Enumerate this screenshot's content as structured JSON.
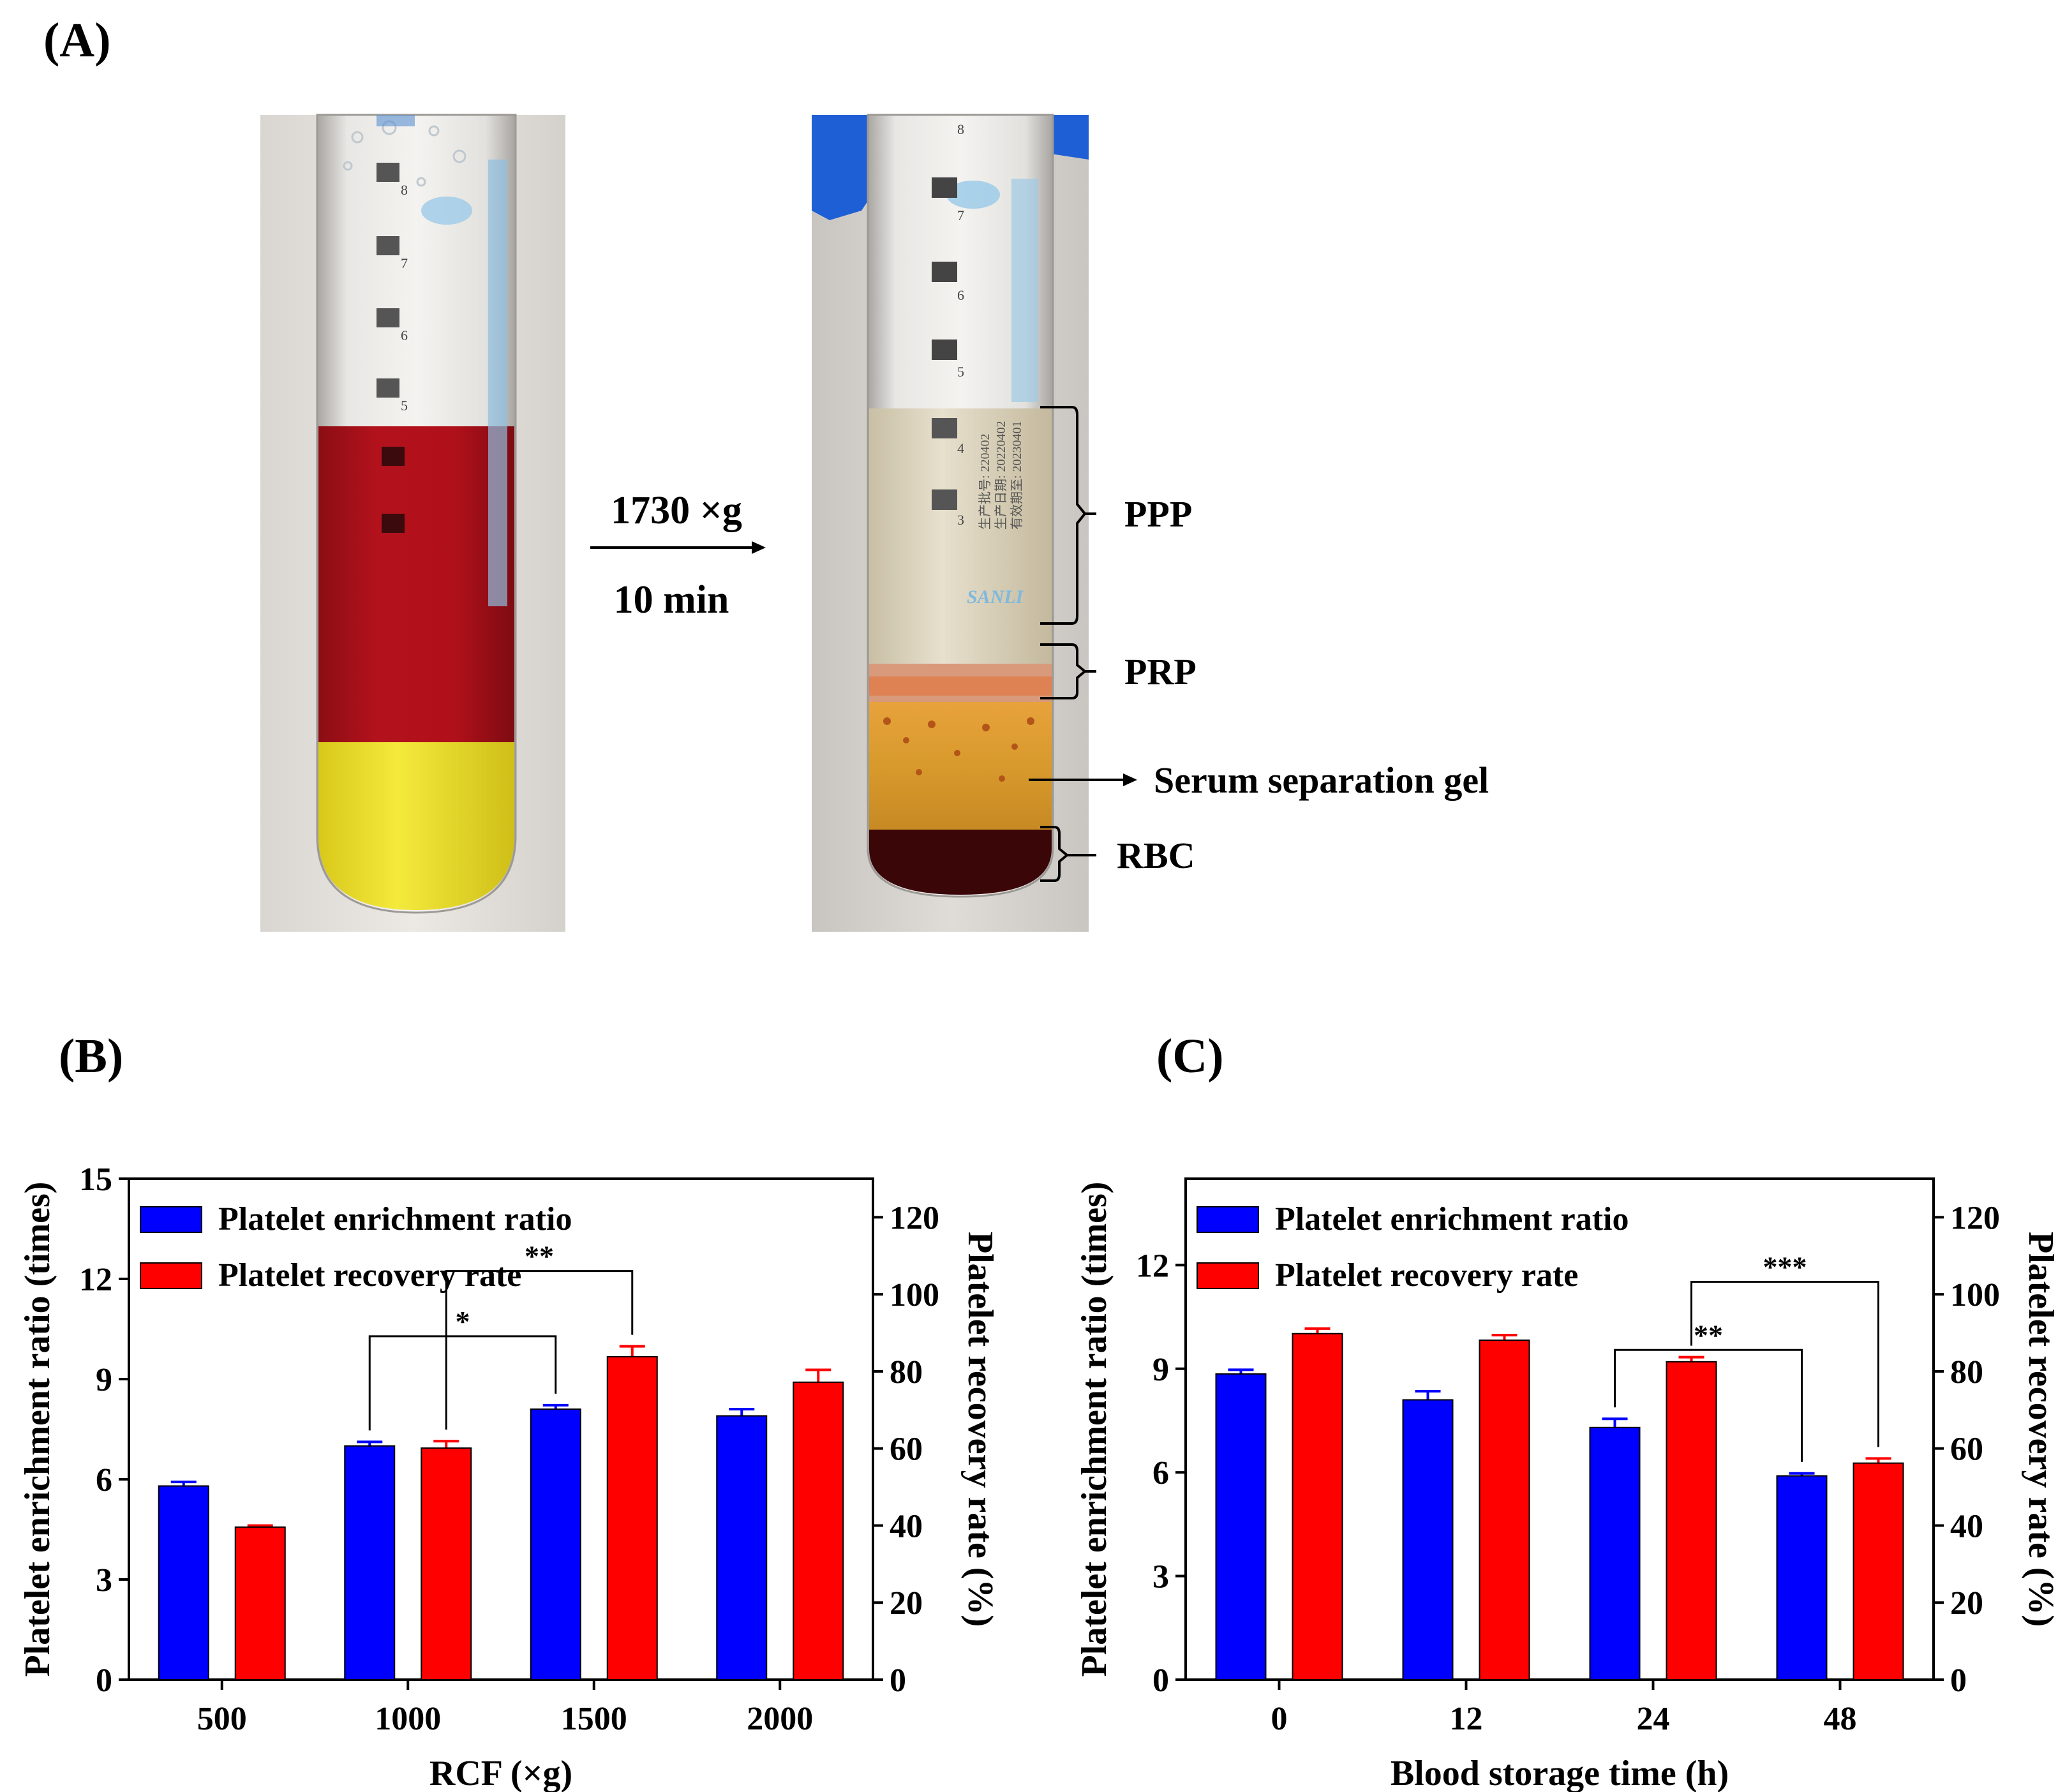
{
  "panels": {
    "a": {
      "label": "(A)",
      "arrow_top": "1730 ×g",
      "arrow_bottom": "10 min",
      "layers": [
        "PPP",
        "PRP",
        "Serum separation gel",
        "RBC"
      ],
      "tube_marks_left": [
        "8",
        "7",
        "6",
        "5"
      ],
      "tube_marks_right": [
        "8",
        "7",
        "6",
        "5",
        "4",
        "3"
      ],
      "tube_print": [
        "生产批号: 220402",
        "生产日期: 20220402",
        "有效期至: 20230401"
      ],
      "brand_text": "SANLI"
    },
    "b": {
      "label": "(B)"
    },
    "c": {
      "label": "(C)"
    }
  },
  "colors": {
    "enrichment": "#0000ff",
    "recovery": "#ff0000",
    "axis": "#000000"
  },
  "chart_data": [
    {
      "id": "B",
      "type": "bar",
      "title": "",
      "xlabel": "RCF (×g)",
      "ylabel": "Platelet enrichment ratio (times)",
      "y2label": "Platelet recovery rate (%)",
      "categories": [
        "500",
        "1000",
        "1500",
        "2000"
      ],
      "ylim": [
        0,
        15
      ],
      "y2lim": [
        0,
        130
      ],
      "yticks": [
        "0",
        "3",
        "6",
        "9",
        "12",
        "15"
      ],
      "y2ticks": [
        "0",
        "20",
        "40",
        "60",
        "80",
        "100",
        "120"
      ],
      "legend_position": "top-left",
      "series": [
        {
          "name": "Platelet enrichment ratio",
          "axis": "left",
          "color": "#0000ff",
          "values": [
            5.8,
            7.0,
            8.1,
            7.9
          ],
          "errors": [
            0.12,
            0.12,
            0.12,
            0.2
          ]
        },
        {
          "name": "Platelet recovery rate",
          "axis": "right",
          "color": "#ff0000",
          "values": [
            39.6,
            60.1,
            83.8,
            77.2
          ],
          "errors": [
            0.4,
            1.8,
            2.7,
            3.2
          ]
        }
      ],
      "annotations": [
        {
          "text": "*",
          "from": [
            "1000",
            0
          ],
          "to": [
            "1500",
            0
          ]
        },
        {
          "text": "**",
          "from": [
            "1000",
            1
          ],
          "to": [
            "1500",
            1
          ]
        }
      ]
    },
    {
      "id": "C",
      "type": "bar",
      "title": "",
      "xlabel": "Blood storage time (h)",
      "ylabel": "Platelet enrichment ratio (times)",
      "y2label": "Platelet recovery rate (%)",
      "categories": [
        "0",
        "12",
        "24",
        "48"
      ],
      "ylim": [
        0,
        14.5
      ],
      "y2lim": [
        0,
        130
      ],
      "yticks": [
        "0",
        "3",
        "6",
        "9",
        "12"
      ],
      "y2ticks": [
        "0",
        "20",
        "40",
        "60",
        "80",
        "100",
        "120"
      ],
      "legend_position": "top-left",
      "series": [
        {
          "name": "Platelet enrichment ratio",
          "axis": "left",
          "color": "#0000ff",
          "values": [
            8.85,
            8.1,
            7.3,
            5.9
          ],
          "errors": [
            0.12,
            0.25,
            0.25,
            0.07
          ]
        },
        {
          "name": "Platelet recovery rate",
          "axis": "right",
          "color": "#ff0000",
          "values": [
            89.8,
            88.1,
            82.5,
            56.2
          ],
          "errors": [
            1.3,
            1.3,
            1.2,
            1.2
          ]
        }
      ],
      "annotations": [
        {
          "text": "**",
          "from": [
            "24",
            0
          ],
          "to": [
            "48",
            0
          ]
        },
        {
          "text": "***",
          "from": [
            "24",
            1
          ],
          "to": [
            "48",
            1
          ]
        }
      ]
    }
  ]
}
